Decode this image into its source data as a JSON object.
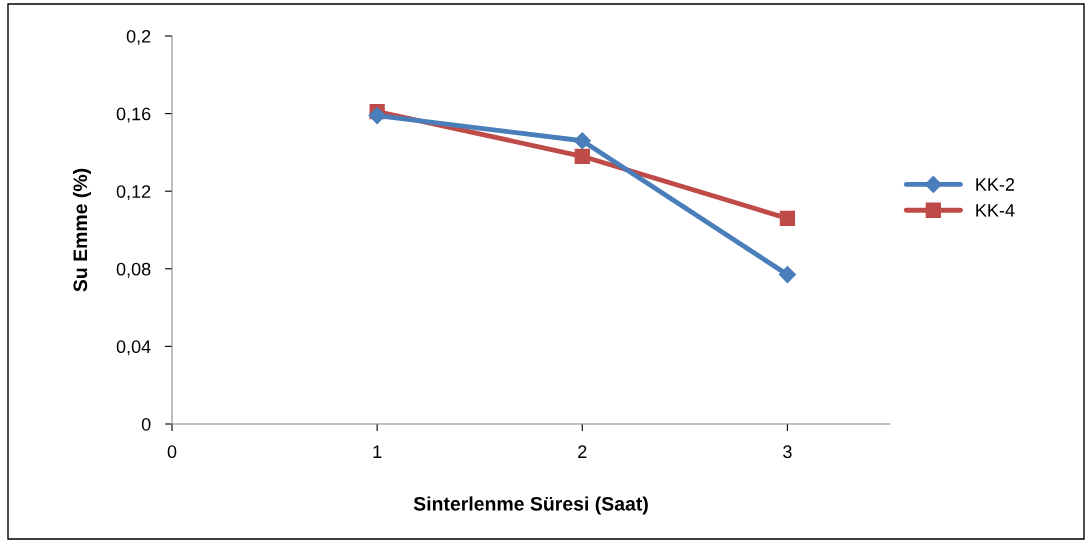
{
  "chart_data": {
    "type": "line",
    "xlabel": "Sinterlenme Süresi (Saat)",
    "ylabel": "Su Emme (%)",
    "x": [
      1,
      2,
      3
    ],
    "series": [
      {
        "name": "KK-2",
        "color": "#4a7ebb",
        "values": [
          0.159,
          0.146,
          0.077
        ],
        "marker": "diamond"
      },
      {
        "name": "KK-4",
        "color": "#be4b48",
        "values": [
          0.161,
          0.138,
          0.106
        ],
        "marker": "square"
      }
    ],
    "xlim": [
      0,
      3.5
    ],
    "xticks": [
      0,
      1,
      2,
      3
    ],
    "ylim": [
      0,
      0.2
    ],
    "yticks": [
      {
        "value": 0,
        "label": "0"
      },
      {
        "value": 0.04,
        "label": "0,04"
      },
      {
        "value": 0.08,
        "label": "0,08"
      },
      {
        "value": 0.12,
        "label": "0,12"
      },
      {
        "value": 0.16,
        "label": "0,16"
      },
      {
        "value": 0.2,
        "label": "0,2"
      }
    ],
    "grid": false,
    "legend": "right",
    "line_style": "solid"
  }
}
